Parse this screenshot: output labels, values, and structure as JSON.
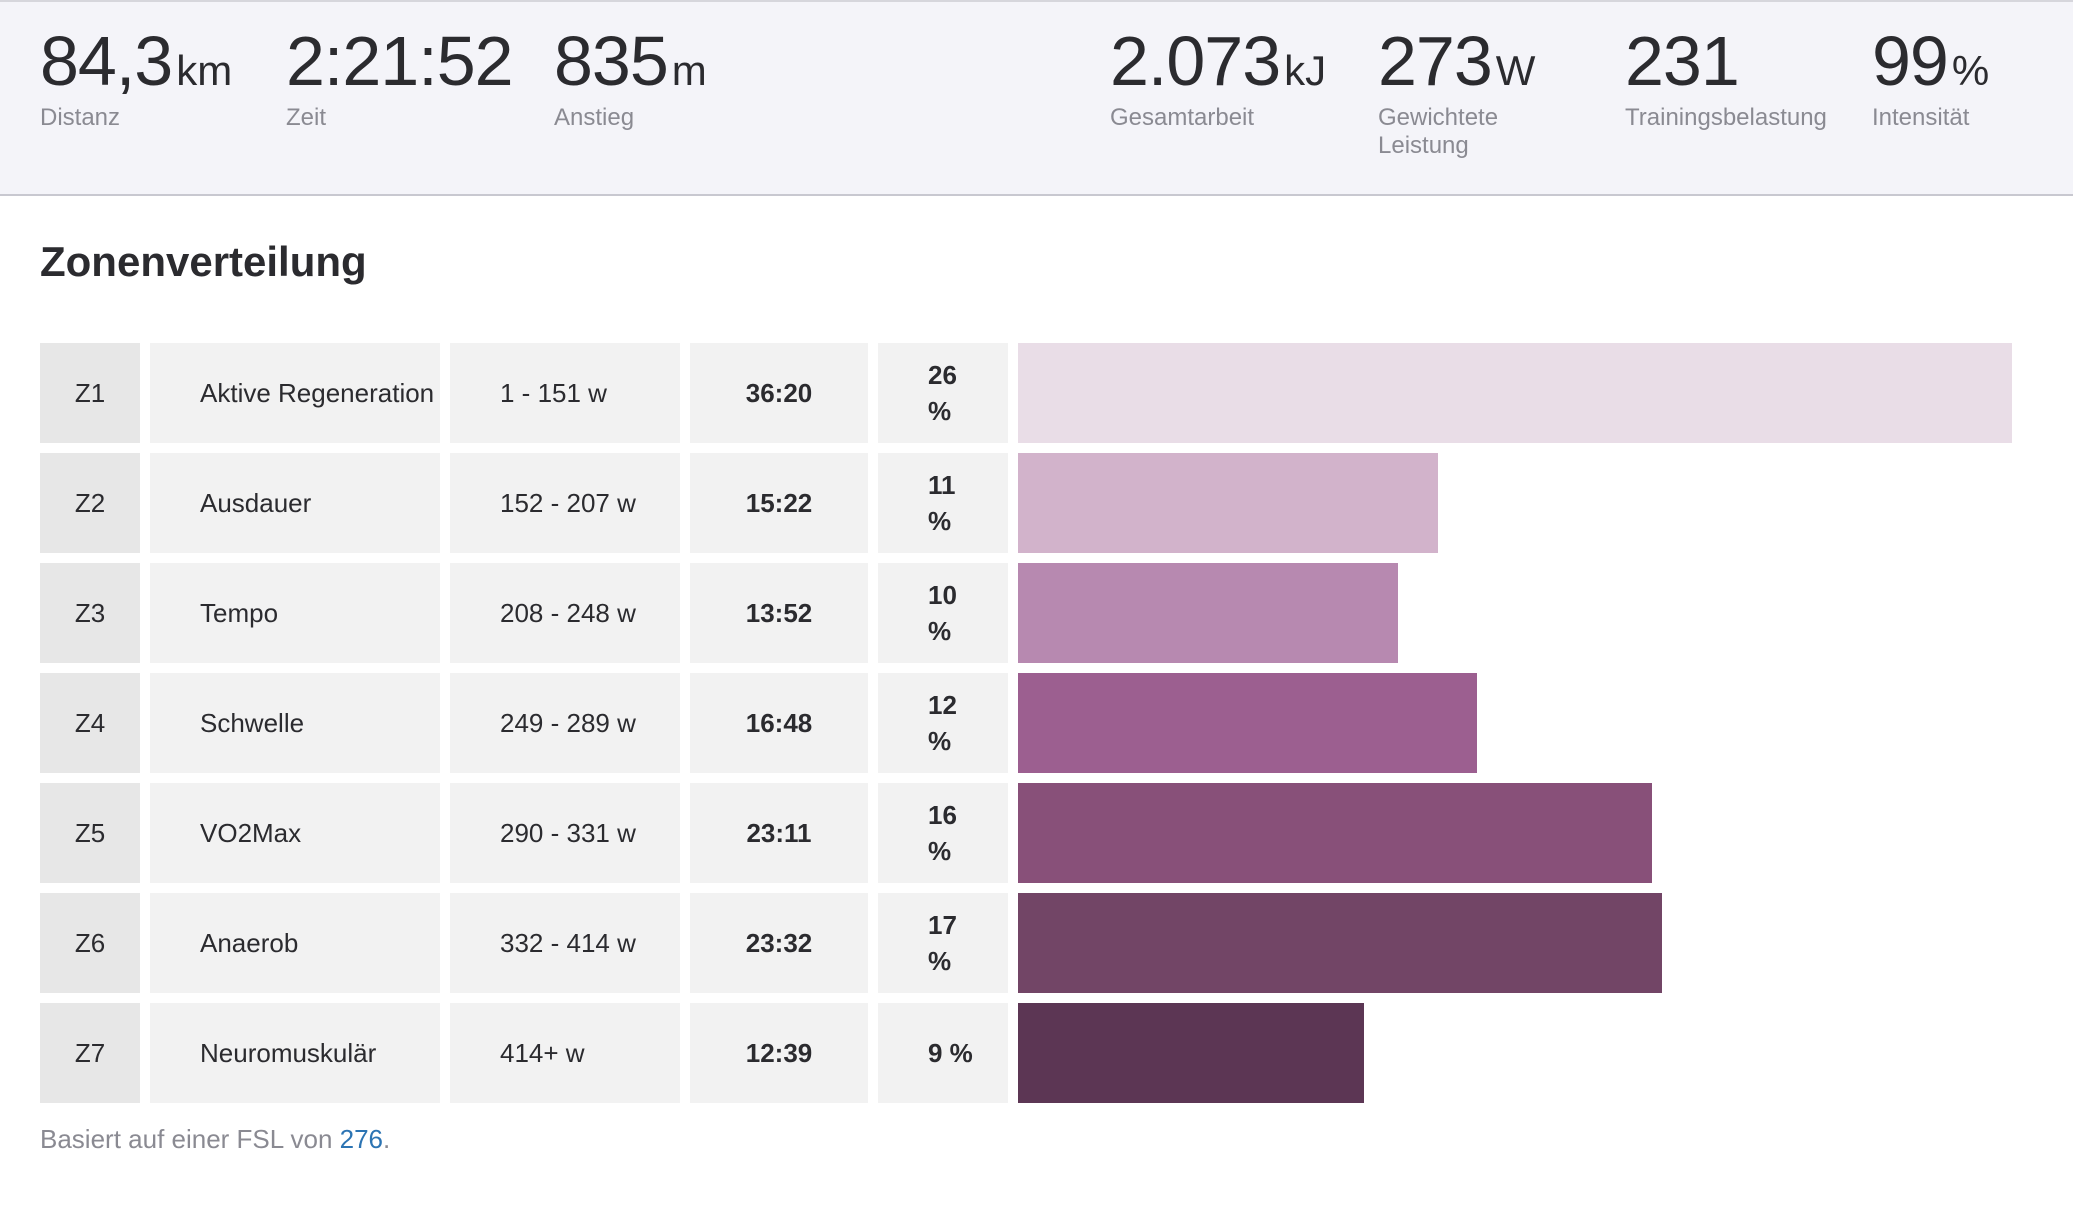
{
  "stats": [
    {
      "value": "84,3",
      "unit": "km",
      "label": "Distanz"
    },
    {
      "value": "2:21:52",
      "unit": "",
      "label": "Zeit"
    },
    {
      "value": "835",
      "unit": "m",
      "label": "Anstieg"
    },
    {
      "value": "2.073",
      "unit": "kJ",
      "label": "Gesamtarbeit"
    },
    {
      "value": "273",
      "unit": "W",
      "label": "Gewichtete Leistung"
    },
    {
      "value": "231",
      "unit": "",
      "label": "Trainingsbelastung"
    },
    {
      "value": "99",
      "unit": "%",
      "label": "Intensität"
    }
  ],
  "zones": {
    "title": "Zonenverteilung",
    "rows": [
      {
        "zone": "Z1",
        "name": "Aktive Regeneration",
        "range": "1 - 151 w",
        "time": "36:20",
        "percent": "26 %",
        "bar_fraction": 1.0,
        "color": "#e9dde7"
      },
      {
        "zone": "Z2",
        "name": "Ausdauer",
        "range": "152 - 207 w",
        "time": "15:22",
        "percent": "11 %",
        "bar_fraction": 0.423,
        "color": "#d2b3cb"
      },
      {
        "zone": "Z3",
        "name": "Tempo",
        "range": "208 - 248 w",
        "time": "13:52",
        "percent": "10 %",
        "bar_fraction": 0.382,
        "color": "#b789b0"
      },
      {
        "zone": "Z4",
        "name": "Schwelle",
        "range": "249 - 289 w",
        "time": "16:48",
        "percent": "12 %",
        "bar_fraction": 0.462,
        "color": "#9c5f90"
      },
      {
        "zone": "Z5",
        "name": "VO2Max",
        "range": "290 - 331 w",
        "time": "23:11",
        "percent": "16 %",
        "bar_fraction": 0.638,
        "color": "#885079"
      },
      {
        "zone": "Z6",
        "name": "Anaerob",
        "range": "332 - 414 w",
        "time": "23:32",
        "percent": "17 %",
        "bar_fraction": 0.648,
        "color": "#724566"
      },
      {
        "zone": "Z7",
        "name": "Neuromuskulär",
        "range": "414+ w",
        "time": "12:39",
        "percent": "9 %",
        "bar_fraction": 0.348,
        "color": "#5c3654"
      }
    ]
  },
  "footnote": {
    "prefix": "Basiert auf einer FSL von ",
    "link": "276",
    "suffix": "."
  }
}
